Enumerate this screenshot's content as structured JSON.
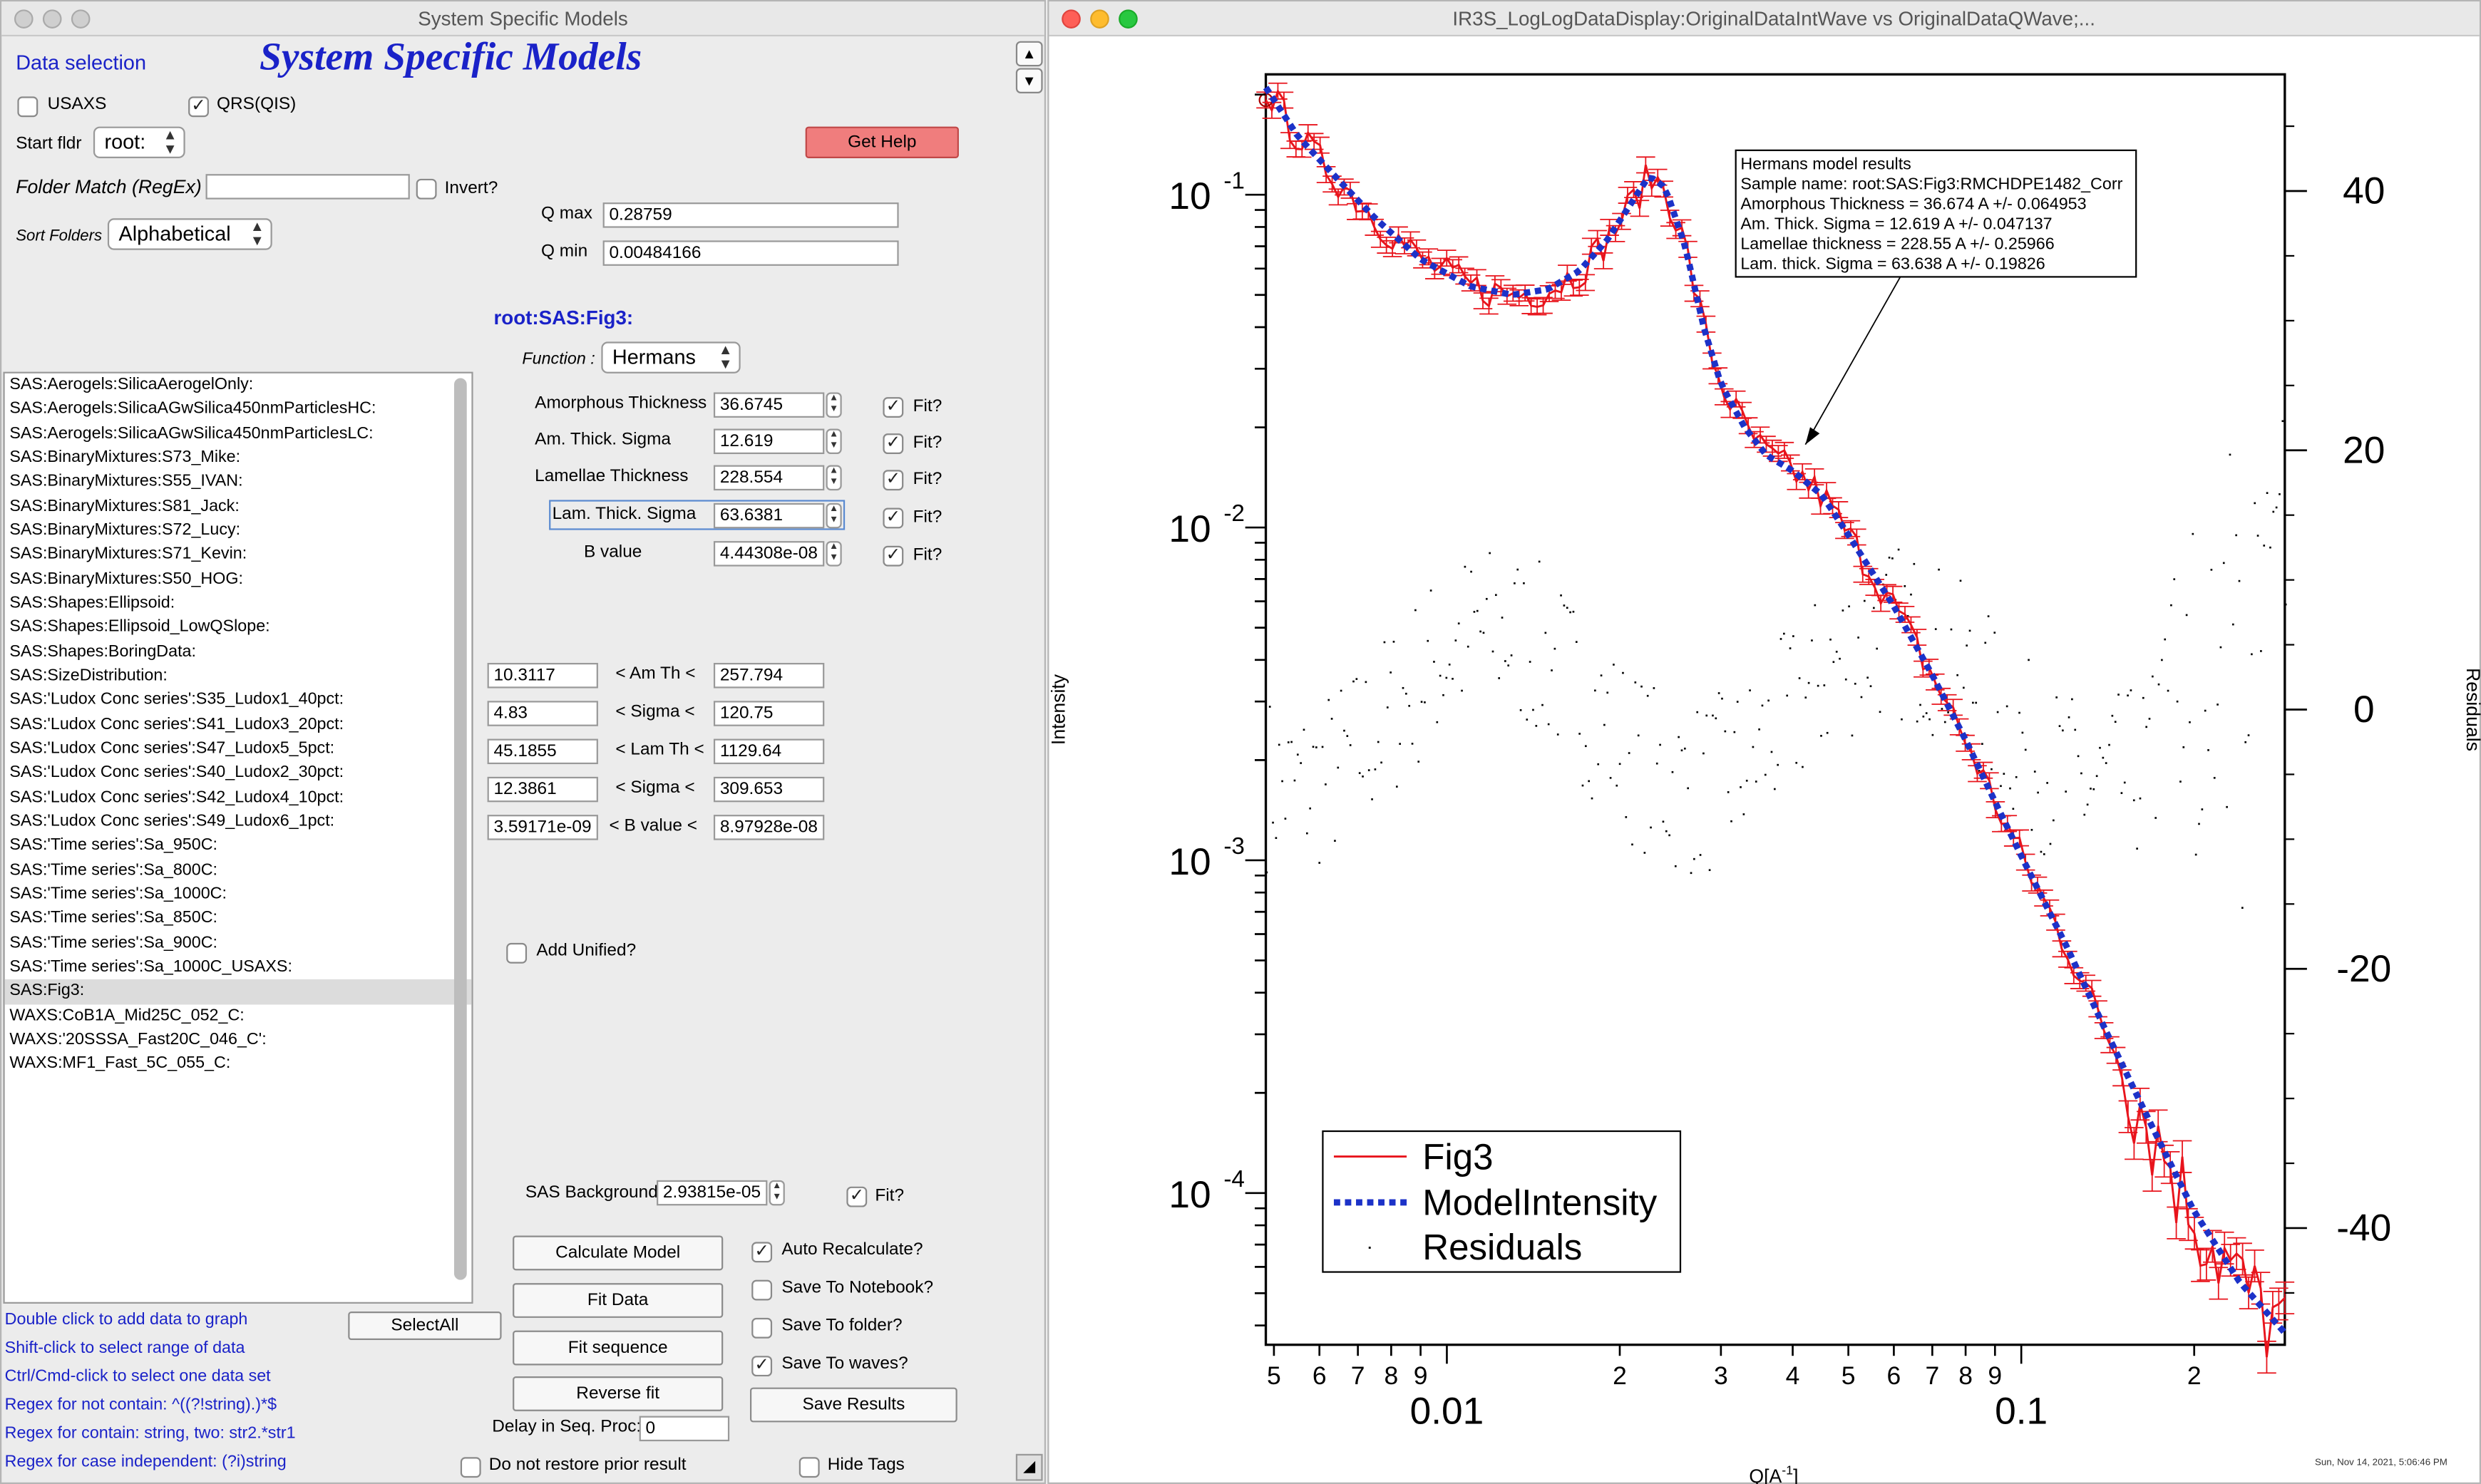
{
  "left_window": {
    "title": "System Specific Models",
    "header": "System Specific Models",
    "data_selection": "Data selection",
    "usaxs_label": "USAXS",
    "qrs_label": "QRS(QIS)",
    "start_fldr_label": "Start fldr",
    "start_fldr_value": "root:",
    "folder_match_label": "Folder Match (RegEx)",
    "folder_match_value": "",
    "invert_label": "Invert?",
    "sort_label": "Sort Folders",
    "sort_value": "Alphabetical",
    "get_help": "Get Help",
    "qmax_label": "Q max",
    "qmax_value": "0.28759",
    "qmin_label": "Q min",
    "qmin_value": "0.00484166",
    "folder_path": "root:SAS:Fig3:",
    "function_label": "Function :",
    "function_value": "Hermans",
    "datasets": [
      "SAS:Aerogels:SilicaAerogelOnly:",
      "SAS:Aerogels:SilicaAGwSilica450nmParticlesHC:",
      "SAS:Aerogels:SilicaAGwSilica450nmParticlesLC:",
      "SAS:BinaryMixtures:S73_Mike:",
      "SAS:BinaryMixtures:S55_IVAN:",
      "SAS:BinaryMixtures:S81_Jack:",
      "SAS:BinaryMixtures:S72_Lucy:",
      "SAS:BinaryMixtures:S71_Kevin:",
      "SAS:BinaryMixtures:S50_HOG:",
      "SAS:Shapes:Ellipsoid:",
      "SAS:Shapes:Ellipsoid_LowQSlope:",
      "SAS:Shapes:BoringData:",
      "SAS:SizeDistribution:",
      "SAS:'Ludox Conc series':S35_Ludox1_40pct:",
      "SAS:'Ludox Conc series':S41_Ludox3_20pct:",
      "SAS:'Ludox Conc series':S47_Ludox5_5pct:",
      "SAS:'Ludox Conc series':S40_Ludox2_30pct:",
      "SAS:'Ludox Conc series':S42_Ludox4_10pct:",
      "SAS:'Ludox Conc series':S49_Ludox6_1pct:",
      "SAS:'Time series':Sa_950C:",
      "SAS:'Time series':Sa_800C:",
      "SAS:'Time series':Sa_1000C:",
      "SAS:'Time series':Sa_850C:",
      "SAS:'Time series':Sa_900C:",
      "SAS:'Time series':Sa_1000C_USAXS:",
      "SAS:Fig3:",
      "WAXS:CoB1A_Mid25C_052_C:",
      "WAXS:'20SSSA_Fast20C_046_C':",
      "WAXS:MF1_Fast_5C_055_C:"
    ],
    "selected_index": 25,
    "params": [
      {
        "label": "Amorphous Thickness",
        "value": "36.6745"
      },
      {
        "label": "Am. Thick. Sigma",
        "value": "12.619"
      },
      {
        "label": "Lamellae Thickness",
        "value": "228.554"
      },
      {
        "label": "Lam. Thick. Sigma",
        "value": "63.6381"
      },
      {
        "label": "B value",
        "value": "4.44308e-08"
      }
    ],
    "fit_label": "Fit?",
    "limits": [
      {
        "low": "10.3117",
        "label": "< Am Th <",
        "high": "257.794"
      },
      {
        "low": "4.83",
        "label": "< Sigma <",
        "high": "120.75"
      },
      {
        "low": "45.1855",
        "label": "< Lam Th <",
        "high": "1129.64"
      },
      {
        "low": "12.3861",
        "label": "< Sigma <",
        "high": "309.653"
      },
      {
        "low": "3.59171e-09",
        "label": "< B value <",
        "high": "8.97928e-08"
      }
    ],
    "add_unified": "Add Unified?",
    "sas_background_label": "SAS Background",
    "sas_background_value": "2.93815e-05",
    "buttons": {
      "calculate": "Calculate Model",
      "fit": "Fit Data",
      "fit_sequence": "Fit sequence",
      "reverse_fit": "Reverse fit",
      "select_all": "SelectAll",
      "save_results": "Save Results"
    },
    "options": {
      "auto_recalc": "Auto Recalculate?",
      "save_notebook": "Save To Notebook?",
      "save_folder": "Save To folder?",
      "save_waves": "Save To waves?"
    },
    "delay_label": "Delay in Seq. Proc:",
    "delay_value": "0",
    "no_restore": "Do not restore prior result",
    "hide_tags": "Hide Tags",
    "hints": [
      "Double click to add data to graph",
      "Shift-click to select range of data",
      "Ctrl/Cmd-click to select one data set",
      "Regex for not contain: ^((?!string).)*$",
      "Regex for contain:  string, two: str2.*str1",
      "Regex for case independent:  (?i)string"
    ]
  },
  "right_window": {
    "title": "IR3S_LogLogDataDisplay:OriginalDataIntWave vs OriginalDataQWave;...",
    "timestamp": "Sun, Nov 14, 2021, 5:06:46 PM"
  },
  "chart_data": {
    "type": "line",
    "xlabel": "Q[A-1]",
    "ylabel": "Intensity",
    "y2label": "Residuals",
    "xscale": "log",
    "yscale": "log",
    "xlim": [
      0.00484,
      0.28759
    ],
    "ylim": [
      3.5e-05,
      0.23
    ],
    "y2lim": [
      -49,
      49
    ],
    "x_major_ticks": [
      "0.01",
      "0.1"
    ],
    "x_minor_ticks": [
      "5",
      "6",
      "7",
      "8",
      "9",
      "2",
      "3",
      "4",
      "5",
      "6",
      "7",
      "8",
      "9",
      "2"
    ],
    "y_ticks": [
      "10",
      "10",
      "10",
      "10"
    ],
    "y_tick_exponents": [
      "-1",
      "-2",
      "-3",
      "-4"
    ],
    "y2_ticks": [
      "40",
      "20",
      "0",
      "-20",
      "-40"
    ],
    "legend": [
      "Fig3",
      "ModelIntensity",
      "Residuals"
    ],
    "legend_position": "bottom-left",
    "annotation": [
      "Hermans model results",
      "Sample name: root:SAS:Fig3:RMCHDPE1482_Corr",
      "Amorphous Thickness = 36.674 A +/- 0.064953",
      "Am. Thick. Sigma = 12.619 A +/- 0.047137",
      "Lamellae thickness = 228.55 A +/- 0.25966",
      "Lam. thick. Sigma = 63.638 A +/- 0.19826"
    ],
    "colors": {
      "data": "#e8141c",
      "model": "#1c32c8",
      "residuals": "#000000"
    },
    "model_points": [
      [
        0.00484,
        0.21
      ],
      [
        0.0055,
        0.15
      ],
      [
        0.0065,
        0.11
      ],
      [
        0.0075,
        0.085
      ],
      [
        0.009,
        0.064
      ],
      [
        0.011,
        0.053
      ],
      [
        0.013,
        0.05
      ],
      [
        0.015,
        0.052
      ],
      [
        0.017,
        0.059
      ],
      [
        0.019,
        0.073
      ],
      [
        0.021,
        0.095
      ],
      [
        0.0225,
        0.114
      ],
      [
        0.024,
        0.105
      ],
      [
        0.026,
        0.07
      ],
      [
        0.028,
        0.04
      ],
      [
        0.03,
        0.027
      ],
      [
        0.033,
        0.02
      ],
      [
        0.036,
        0.0165
      ],
      [
        0.04,
        0.0148
      ],
      [
        0.045,
        0.0125
      ],
      [
        0.05,
        0.0095
      ],
      [
        0.06,
        0.0058
      ],
      [
        0.07,
        0.0036
      ],
      [
        0.08,
        0.0023
      ],
      [
        0.09,
        0.0015
      ],
      [
        0.1,
        0.00103
      ],
      [
        0.12,
        0.00055
      ],
      [
        0.14,
        0.00031
      ],
      [
        0.17,
        0.000155
      ],
      [
        0.2,
        8.8e-05
      ],
      [
        0.24,
        5.4e-05
      ],
      [
        0.28759,
        3.8e-05
      ]
    ],
    "data_noise": "±12% jitter around model with vertical error bars",
    "residuals_range": [
      -22,
      20
    ]
  }
}
